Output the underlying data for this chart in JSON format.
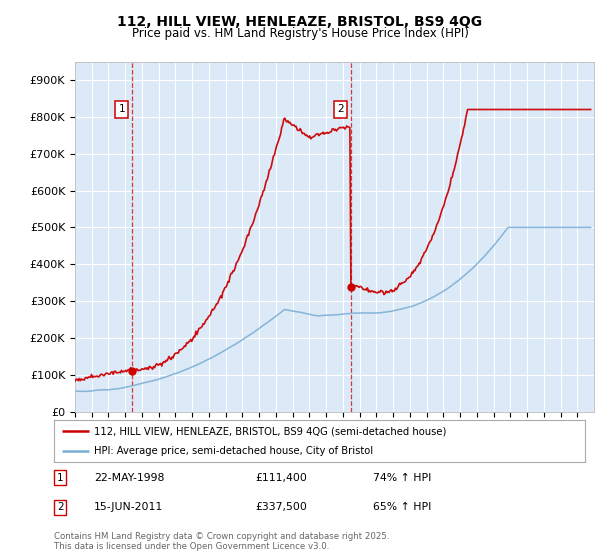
{
  "title_line1": "112, HILL VIEW, HENLEAZE, BRISTOL, BS9 4QG",
  "title_line2": "Price paid vs. HM Land Registry's House Price Index (HPI)",
  "plot_bg_color": "#dce9f7",
  "grid_color": "#ffffff",
  "red_line_color": "#cc0000",
  "blue_line_color": "#7bafd4",
  "marker1_date_num": 1998.39,
  "marker1_price": 111400,
  "marker1_label": "1",
  "marker2_date_num": 2011.46,
  "marker2_price": 337500,
  "marker2_label": "2",
  "legend_entry1": "112, HILL VIEW, HENLEAZE, BRISTOL, BS9 4QG (semi-detached house)",
  "legend_entry2": "HPI: Average price, semi-detached house, City of Bristol",
  "note1_label": "1",
  "note1_date": "22-MAY-1998",
  "note1_price": "£111,400",
  "note1_hpi": "74% ↑ HPI",
  "note2_label": "2",
  "note2_date": "15-JUN-2011",
  "note2_price": "£337,500",
  "note2_hpi": "65% ↑ HPI",
  "footer": "Contains HM Land Registry data © Crown copyright and database right 2025.\nThis data is licensed under the Open Government Licence v3.0.",
  "ylim": [
    0,
    950000
  ],
  "xlim_start": 1995.0,
  "xlim_end": 2026.0
}
